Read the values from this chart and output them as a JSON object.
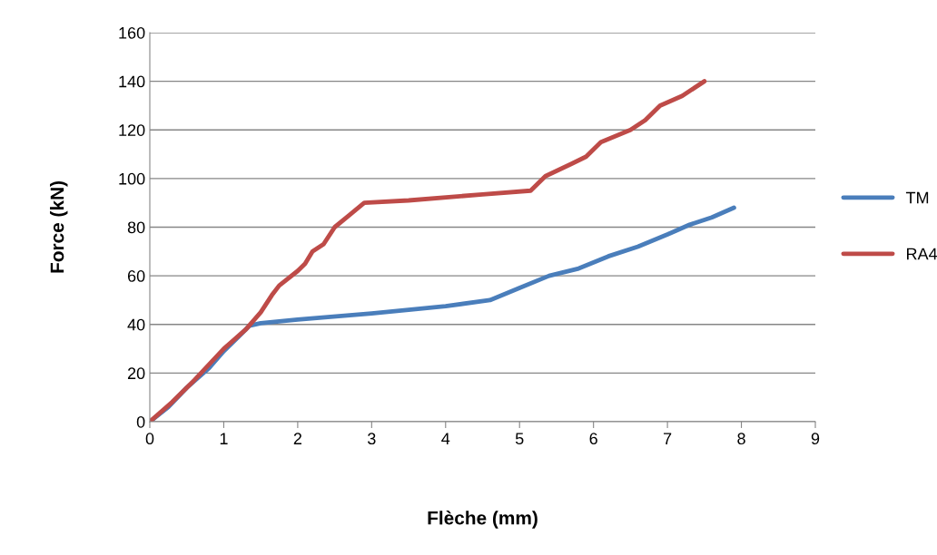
{
  "chart_data": {
    "type": "line",
    "xlabel": "Flèche (mm)",
    "ylabel": "Force (kN)",
    "xlim": [
      0,
      9
    ],
    "xticks": [
      0,
      1,
      2,
      3,
      4,
      5,
      6,
      7,
      8,
      9
    ],
    "ylim": [
      0,
      160
    ],
    "yticks": [
      0,
      20,
      40,
      60,
      80,
      100,
      120,
      140,
      160
    ],
    "grid": "y",
    "legend": "right",
    "marker": "none",
    "line_style": "solid",
    "series": [
      {
        "name": "TM",
        "color": "#4a7ebb",
        "x": [
          0,
          0.25,
          0.5,
          0.8,
          1.0,
          1.2,
          1.35,
          1.5,
          2.0,
          3.0,
          4.0,
          4.6,
          5.0,
          5.4,
          5.8,
          6.2,
          6.6,
          7.0,
          7.3,
          7.6,
          7.9
        ],
        "values": [
          0,
          6,
          14,
          22,
          29,
          35,
          39.5,
          40.5,
          42,
          44.5,
          47.5,
          50,
          55,
          60,
          63,
          68,
          72,
          77,
          81,
          84,
          88
        ]
      },
      {
        "name": "RA4",
        "color": "#be4b48",
        "x": [
          0,
          0.3,
          0.6,
          1.0,
          1.3,
          1.5,
          1.65,
          1.75,
          2.0,
          2.1,
          2.2,
          2.35,
          2.5,
          2.7,
          2.9,
          3.5,
          4.5,
          5.15,
          5.25,
          5.35,
          5.7,
          5.9,
          6.1,
          6.5,
          6.7,
          6.9,
          7.2,
          7.5
        ],
        "values": [
          0,
          8,
          17,
          30,
          38,
          45,
          52,
          56,
          62,
          65,
          70,
          73,
          80,
          85,
          90,
          91,
          93.5,
          95,
          98,
          101,
          106,
          109,
          115,
          120,
          124,
          130,
          134,
          140
        ]
      }
    ]
  }
}
